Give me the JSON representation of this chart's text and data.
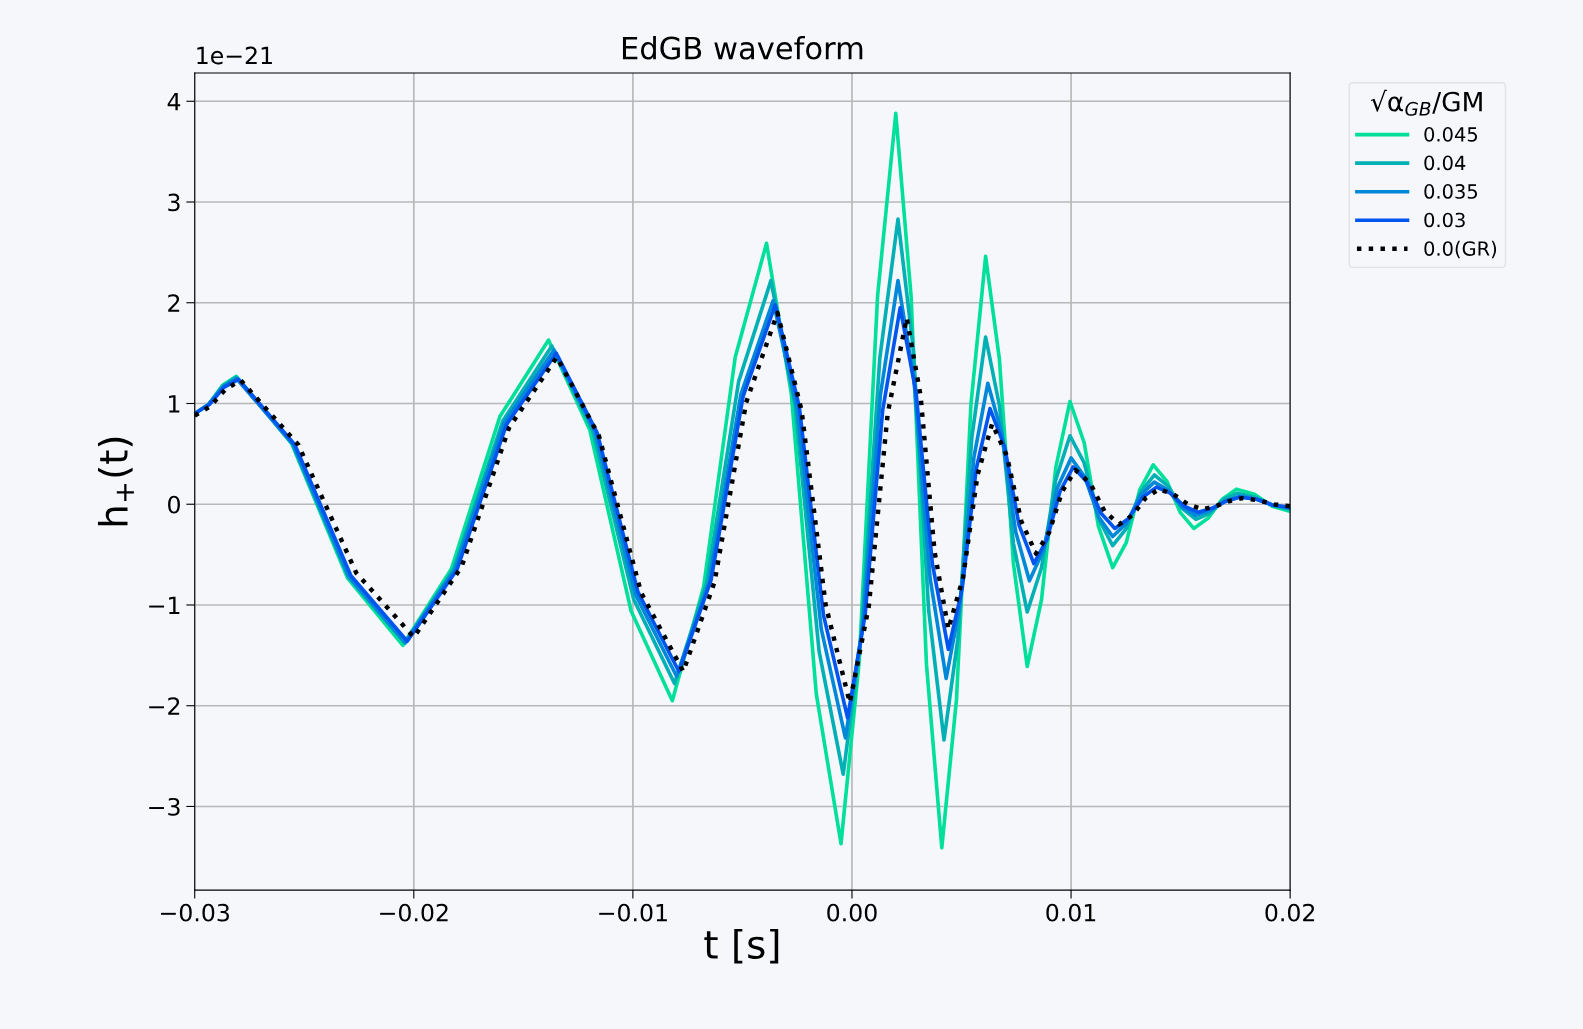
{
  "chart_data": {
    "type": "line",
    "title": "EdGB waveform",
    "xlabel": "t [s]",
    "ylabel": "h$_{+}$(t)",
    "legend_title": "√α$_{GB}$/GM",
    "annotations": [
      "1e−21"
    ],
    "xlim": [
      -0.03,
      0.02
    ],
    "ylim": [
      -3.83,
      4.28
    ],
    "xticks": [
      {
        "value": -0.03,
        "label": "−0.03"
      },
      {
        "value": -0.02,
        "label": "−0.02"
      },
      {
        "value": -0.01,
        "label": "−0.01"
      },
      {
        "value": 0.0,
        "label": "0.00"
      },
      {
        "value": 0.01,
        "label": "0.01"
      },
      {
        "value": 0.02,
        "label": "0.02"
      }
    ],
    "yticks": [
      {
        "value": -3,
        "label": "−3"
      },
      {
        "value": -2,
        "label": "−2"
      },
      {
        "value": -1,
        "label": "−1"
      },
      0,
      1,
      2,
      3,
      4
    ],
    "grid": true,
    "legend": "top right",
    "marker": "none",
    "series": [
      {
        "name": "0.045",
        "color": "#00e09a",
        "line_style": "solid",
        "x": [
          -0.03,
          -0.02937,
          -0.02873,
          -0.0281,
          -0.02557,
          -0.02303,
          -0.0205,
          -0.01828,
          -0.01607,
          -0.01385,
          -0.01197,
          -0.01008,
          -0.0082,
          -0.00677,
          -0.00533,
          -0.0039,
          -0.00277,
          -0.00163,
          -0.0005,
          0.00033,
          0.00117,
          0.002,
          0.0027,
          0.0034,
          0.0041,
          0.00477,
          0.00543,
          0.0061,
          0.00673,
          0.00737,
          0.008,
          0.00865,
          0.0093,
          0.00995,
          0.0106,
          0.01125,
          0.0119,
          0.01252,
          0.01313,
          0.01375,
          0.01437,
          0.01498,
          0.0156,
          0.01625,
          0.0169,
          0.01755,
          0.01837,
          0.01918,
          0.02
        ],
        "values": [
          0.9,
          0.99,
          1.18,
          1.27,
          0.6,
          -0.73,
          -1.4,
          -0.64,
          0.87,
          1.63,
          0.74,
          -1.06,
          -1.95,
          -0.82,
          1.46,
          2.59,
          1.1,
          -1.88,
          -3.37,
          -1.56,
          2.07,
          3.88,
          2.06,
          -1.59,
          -3.41,
          -1.94,
          0.99,
          2.46,
          1.44,
          -0.59,
          -1.61,
          -0.95,
          0.36,
          1.02,
          0.61,
          -0.22,
          -0.63,
          -0.38,
          0.14,
          0.39,
          0.23,
          -0.08,
          -0.24,
          -0.14,
          0.05,
          0.15,
          0.1,
          -0.02,
          -0.07
        ]
      },
      {
        "name": "0.04",
        "color": "#00b0b4",
        "line_style": "solid",
        "x": [
          -0.03,
          -0.02937,
          -0.02873,
          -0.0281,
          -0.02553,
          -0.02297,
          -0.0204,
          -0.01817,
          -0.01593,
          -0.0137,
          -0.01183,
          -0.00997,
          -0.0081,
          -0.00663,
          -0.00517,
          -0.0037,
          -0.0026,
          -0.0015,
          -0.0004,
          0.00043,
          0.00127,
          0.0021,
          0.0028,
          0.0035,
          0.0042,
          0.00483,
          0.00547,
          0.0061,
          0.00673,
          0.00737,
          0.008,
          0.00865,
          0.0093,
          0.00995,
          0.0106,
          0.01125,
          0.0119,
          0.01253,
          0.01317,
          0.0138,
          0.01443,
          0.01507,
          0.0157,
          0.01633,
          0.01697,
          0.0176,
          0.0184,
          0.0192,
          0.02
        ],
        "values": [
          0.9,
          0.99,
          1.17,
          1.26,
          0.6,
          -0.72,
          -1.38,
          -0.64,
          0.83,
          1.57,
          0.73,
          -0.94,
          -1.78,
          -0.78,
          1.22,
          2.22,
          0.99,
          -1.46,
          -2.68,
          -1.3,
          1.45,
          2.83,
          1.54,
          -1.05,
          -2.34,
          -1.34,
          0.66,
          1.66,
          0.98,
          -0.39,
          -1.07,
          -0.63,
          0.24,
          0.68,
          0.41,
          -0.14,
          -0.41,
          -0.24,
          0.12,
          0.29,
          0.18,
          -0.04,
          -0.15,
          -0.09,
          0.05,
          0.11,
          0.07,
          -0.01,
          -0.05
        ]
      },
      {
        "name": "0.035",
        "color": "#0088d8",
        "line_style": "solid",
        "x": [
          -0.03,
          -0.02937,
          -0.02873,
          -0.0281,
          -0.02553,
          -0.02297,
          -0.0204,
          -0.01813,
          -0.01587,
          -0.0136,
          -0.01173,
          -0.00987,
          -0.008,
          -0.00653,
          -0.00507,
          -0.0036,
          -0.0025,
          -0.0014,
          -0.0003,
          0.0005,
          0.0013,
          0.0021,
          0.00283,
          0.00357,
          0.0043,
          0.00493,
          0.00557,
          0.0062,
          0.00683,
          0.00747,
          0.0081,
          0.00873,
          0.00937,
          0.01,
          0.01063,
          0.01127,
          0.0119,
          0.01253,
          0.01317,
          0.0138,
          0.01443,
          0.01507,
          0.0157,
          0.01637,
          0.01703,
          0.0177,
          0.01847,
          0.01923,
          0.02
        ],
        "values": [
          0.9,
          0.99,
          1.16,
          1.25,
          0.6,
          -0.72,
          -1.37,
          -0.65,
          0.81,
          1.53,
          0.72,
          -0.9,
          -1.71,
          -0.78,
          1.09,
          2.02,
          0.94,
          -1.24,
          -2.32,
          -1.19,
          1.09,
          2.22,
          1.23,
          -0.74,
          -1.73,
          -1.0,
          0.47,
          1.2,
          0.71,
          -0.27,
          -0.76,
          -0.46,
          0.16,
          0.46,
          0.27,
          -0.13,
          -0.32,
          -0.19,
          0.09,
          0.22,
          0.14,
          -0.03,
          -0.11,
          -0.06,
          0.03,
          0.08,
          0.05,
          -0.01,
          -0.04
        ]
      },
      {
        "name": "0.03",
        "color": "#0055ee",
        "line_style": "solid",
        "x": [
          -0.03,
          -0.02933,
          -0.02867,
          -0.028,
          -0.02543,
          -0.02287,
          -0.0203,
          -0.01803,
          -0.01577,
          -0.0135,
          -0.01163,
          -0.00977,
          -0.0079,
          -0.00643,
          -0.00497,
          -0.0035,
          -0.0024,
          -0.0013,
          -0.0002,
          0.0006,
          0.0014,
          0.0022,
          0.00293,
          0.00367,
          0.0044,
          0.00503,
          0.00567,
          0.0063,
          0.00697,
          0.00763,
          0.0083,
          0.0089,
          0.0095,
          0.0101,
          0.01073,
          0.01137,
          0.012,
          0.01263,
          0.01327,
          0.0139,
          0.01453,
          0.01517,
          0.0158,
          0.01643,
          0.01707,
          0.0177,
          0.01847,
          0.01923,
          0.02
        ],
        "values": [
          0.9,
          0.99,
          1.16,
          1.24,
          0.59,
          -0.71,
          -1.36,
          -0.65,
          0.79,
          1.5,
          0.71,
          -0.87,
          -1.66,
          -0.75,
          1.07,
          1.98,
          0.96,
          -1.1,
          -2.12,
          -1.1,
          0.93,
          1.95,
          1.1,
          -0.59,
          -1.44,
          -0.84,
          0.35,
          0.95,
          0.57,
          -0.21,
          -0.59,
          -0.35,
          0.13,
          0.37,
          0.22,
          -0.09,
          -0.24,
          -0.14,
          0.07,
          0.17,
          0.11,
          -0.02,
          -0.08,
          -0.04,
          0.03,
          0.07,
          0.05,
          -0.01,
          -0.03
        ]
      },
      {
        "name": "0.0(GR)",
        "color": "#000000",
        "line_style": "dotted",
        "x": [
          -0.03,
          -0.0293,
          -0.0286,
          -0.0279,
          -0.02527,
          -0.02263,
          -0.02,
          -0.01782,
          -0.01565,
          -0.01347,
          -0.01155,
          -0.00962,
          -0.0077,
          -0.00627,
          -0.00483,
          -0.0034,
          -0.0023,
          -0.0012,
          -0.0001,
          0.00077,
          0.00163,
          0.0025,
          0.00313,
          0.00377,
          0.0044,
          0.00507,
          0.00573,
          0.0064,
          0.00707,
          0.00773,
          0.0084,
          0.009,
          0.0096,
          0.0102,
          0.01087,
          0.01153,
          0.0122,
          0.0128,
          0.0134,
          0.014,
          0.01467,
          0.01533,
          0.016,
          0.0166,
          0.0172,
          0.0178,
          0.01853,
          0.01927,
          0.02
        ],
        "values": [
          0.88,
          0.97,
          1.14,
          1.23,
          0.59,
          -0.68,
          -1.32,
          -0.62,
          0.76,
          1.46,
          0.68,
          -0.88,
          -1.66,
          -0.77,
          1.01,
          1.9,
          0.93,
          -1.0,
          -1.97,
          -1.01,
          0.9,
          1.85,
          1.08,
          -0.47,
          -1.24,
          -0.73,
          0.29,
          0.8,
          0.48,
          -0.17,
          -0.49,
          -0.28,
          0.13,
          0.34,
          0.21,
          -0.07,
          -0.2,
          -0.11,
          0.06,
          0.15,
          0.1,
          0,
          -0.05,
          -0.02,
          0.03,
          0.06,
          0.04,
          0,
          -0.02
        ]
      }
    ]
  }
}
